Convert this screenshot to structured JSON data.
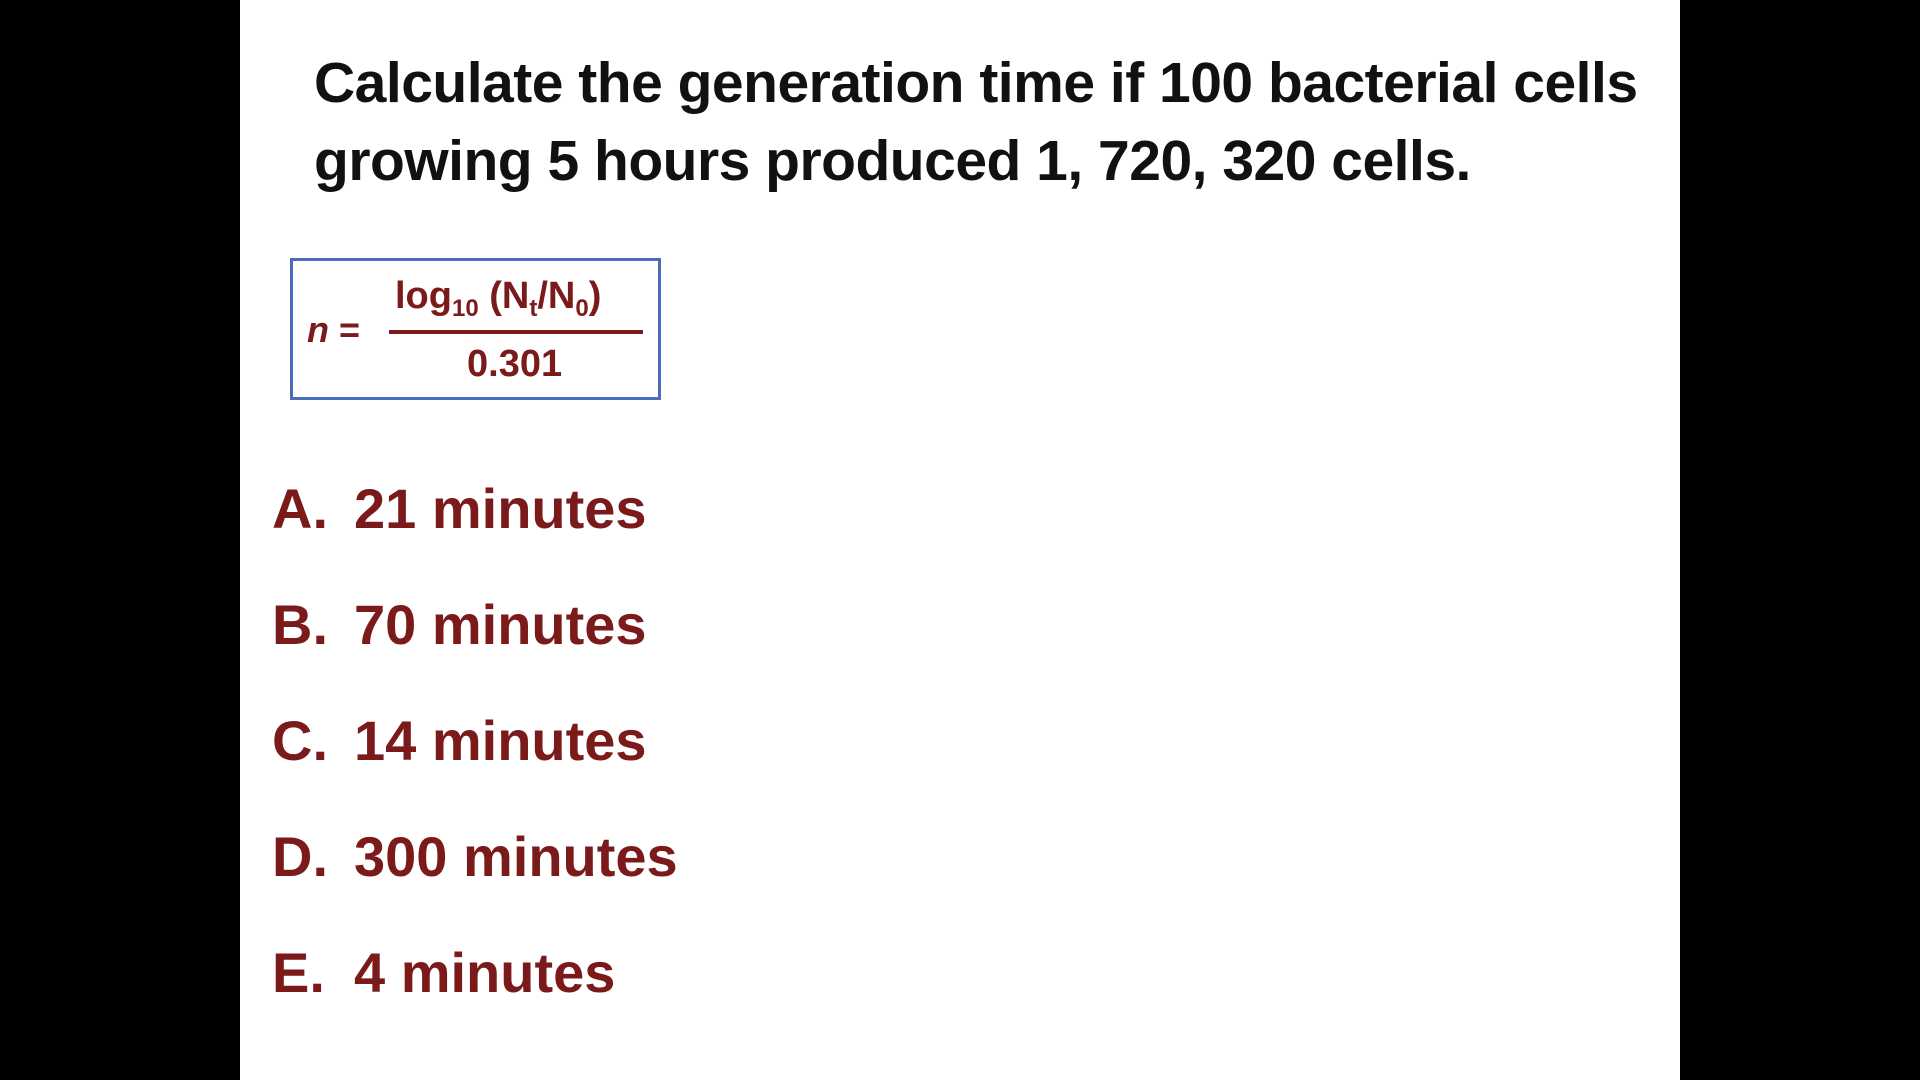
{
  "question": {
    "line1": "Calculate the generation time if 100 bacterial cells",
    "line2": "growing 5 hours produced 1, 720, 320 cells."
  },
  "formula": {
    "lhs_var": "n",
    "lhs_eq": " =",
    "log": "log",
    "log_base": "10",
    "numerator_open": " (N",
    "nt_sub": "t",
    "slash_n": "/N",
    "n0_sub": "0",
    "numerator_close": ")",
    "denominator": "0.301"
  },
  "options": [
    {
      "letter": "A.",
      "text": "21 minutes"
    },
    {
      "letter": "B.",
      "text": "70 minutes"
    },
    {
      "letter": "C.",
      "text": "14 minutes"
    },
    {
      "letter": "D.",
      "text": "300 minutes"
    },
    {
      "letter": "E.",
      "text": "4 minutes"
    }
  ],
  "play_widget": {
    "icon": "play-icon",
    "accent": "#4cb838"
  }
}
